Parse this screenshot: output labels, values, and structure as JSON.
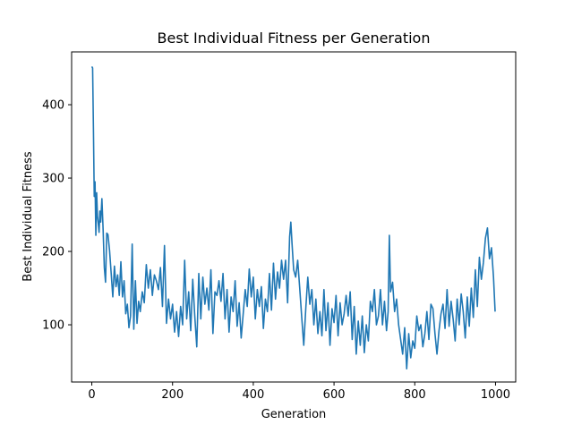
{
  "chart_data": {
    "type": "line",
    "title": "Best Individual Fitness per Generation",
    "xlabel": "Generation",
    "ylabel": "Best Individual Fitness",
    "xlim": [
      -50,
      1050
    ],
    "ylim": [
      22,
      472
    ],
    "xticks": [
      0,
      200,
      400,
      600,
      800,
      1000
    ],
    "yticks": [
      100,
      200,
      300,
      400
    ],
    "grid": false,
    "legend": "none",
    "series": [
      {
        "color": "#1f77b4",
        "x": [
          0,
          2,
          4,
          6,
          8,
          10,
          12,
          14,
          16,
          18,
          20,
          22,
          25,
          28,
          31,
          34,
          37,
          40,
          44,
          48,
          52,
          56,
          60,
          64,
          68,
          72,
          76,
          80,
          84,
          88,
          92,
          96,
          100,
          104,
          108,
          112,
          116,
          120,
          125,
          130,
          135,
          140,
          145,
          150,
          155,
          160,
          165,
          170,
          175,
          180,
          185,
          190,
          195,
          200,
          205,
          210,
          215,
          220,
          225,
          230,
          235,
          240,
          245,
          250,
          255,
          260,
          265,
          270,
          275,
          280,
          285,
          290,
          295,
          300,
          305,
          310,
          315,
          320,
          325,
          330,
          335,
          340,
          345,
          350,
          355,
          360,
          365,
          370,
          375,
          380,
          385,
          390,
          395,
          400,
          405,
          410,
          415,
          420,
          425,
          430,
          435,
          440,
          445,
          450,
          455,
          460,
          465,
          470,
          475,
          480,
          485,
          490,
          493,
          496,
          500,
          505,
          510,
          515,
          520,
          525,
          530,
          535,
          540,
          545,
          550,
          555,
          560,
          565,
          570,
          575,
          580,
          585,
          590,
          595,
          600,
          605,
          610,
          615,
          620,
          625,
          630,
          635,
          640,
          645,
          650,
          655,
          660,
          665,
          670,
          675,
          680,
          685,
          690,
          695,
          700,
          705,
          710,
          715,
          720,
          725,
          730,
          734,
          737,
          740,
          745,
          750,
          755,
          760,
          765,
          770,
          775,
          780,
          785,
          790,
          795,
          800,
          805,
          810,
          815,
          820,
          825,
          830,
          835,
          840,
          845,
          850,
          855,
          860,
          865,
          870,
          875,
          880,
          885,
          890,
          895,
          900,
          905,
          910,
          915,
          920,
          925,
          930,
          935,
          940,
          945,
          950,
          955,
          960,
          965,
          970,
          975,
          980,
          985,
          990,
          995,
          999
        ],
        "y": [
          452,
          450,
          368,
          275,
          295,
          222,
          280,
          248,
          238,
          226,
          255,
          240,
          272,
          230,
          178,
          158,
          225,
          223,
          201,
          170,
          138,
          180,
          152,
          168,
          140,
          186,
          138,
          160,
          115,
          128,
          96,
          112,
          210,
          94,
          160,
          102,
          132,
          118,
          145,
          130,
          182,
          150,
          175,
          140,
          168,
          160,
          148,
          178,
          125,
          208,
          102,
          135,
          108,
          128,
          90,
          118,
          84,
          125,
          100,
          188,
          108,
          145,
          92,
          162,
          112,
          70,
          170,
          108,
          165,
          128,
          150,
          120,
          175,
          88,
          145,
          140,
          160,
          132,
          170,
          108,
          148,
          90,
          138,
          118,
          160,
          98,
          130,
          82,
          115,
          148,
          125,
          176,
          138,
          165,
          108,
          148,
          125,
          152,
          95,
          135,
          118,
          170,
          120,
          184,
          135,
          172,
          150,
          188,
          162,
          188,
          130,
          220,
          240,
          210,
          175,
          165,
          188,
          150,
          110,
          72,
          122,
          165,
          128,
          148,
          100,
          135,
          88,
          118,
          85,
          148,
          92,
          130,
          72,
          122,
          103,
          140,
          85,
          130,
          100,
          115,
          140,
          112,
          145,
          80,
          125,
          60,
          105,
          72,
          112,
          62,
          100,
          78,
          132,
          118,
          148,
          100,
          112,
          148,
          100,
          132,
          92,
          118,
          222,
          145,
          158,
          118,
          135,
          100,
          80,
          60,
          96,
          40,
          88,
          55,
          78,
          68,
          112,
          92,
          100,
          70,
          88,
          118,
          80,
          128,
          122,
          88,
          60,
          92,
          115,
          128,
          95,
          148,
          98,
          132,
          108,
          78,
          135,
          100,
          142,
          118,
          82,
          138,
          98,
          150,
          110,
          175,
          125,
          192,
          162,
          185,
          218,
          232,
          190,
          205,
          165,
          118
        ]
      }
    ]
  }
}
